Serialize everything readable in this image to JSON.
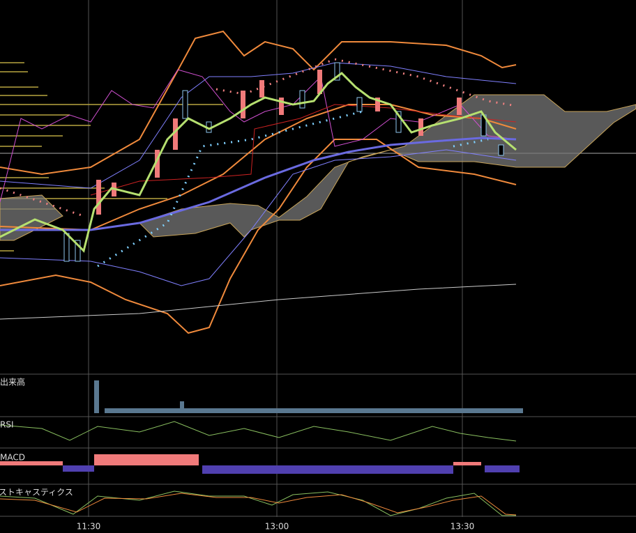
{
  "panels": {
    "volume": "出来高",
    "rsi": "RSI",
    "macd": "MACD",
    "stochastics": "ストキャスティクス"
  },
  "time_axis": [
    "11:30",
    "13:00",
    "13:30"
  ]
}
